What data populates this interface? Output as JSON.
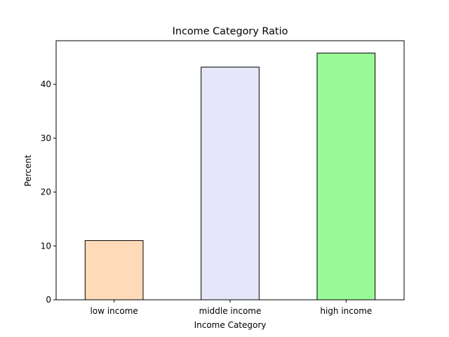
{
  "chart_data": {
    "type": "bar",
    "title": "Income Category Ratio",
    "xlabel": "Income Category",
    "ylabel": "Percent",
    "categories": [
      "low income",
      "middle income",
      "high income"
    ],
    "values": [
      11.0,
      43.2,
      45.8
    ],
    "colors": [
      "#ffdab9",
      "#e6e6fa",
      "#98fb98"
    ],
    "edge_color": "#000000",
    "yticks": [
      0,
      10,
      20,
      30,
      40
    ],
    "ylim": [
      0,
      48.1
    ],
    "grid": false,
    "legend": "none"
  }
}
